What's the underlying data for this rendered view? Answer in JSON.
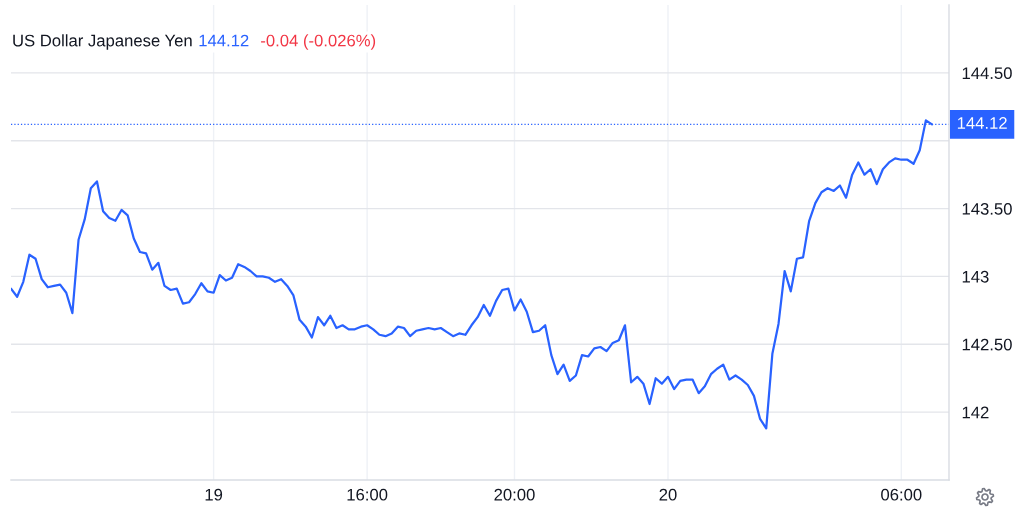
{
  "chart_data": {
    "type": "line",
    "title": "US Dollar Japanese Yen",
    "annotations": [
      "144.12",
      "-0.04 (-0.026%)"
    ],
    "categories": [
      null,
      null,
      null,
      null,
      null,
      null,
      null,
      null,
      null,
      null,
      null,
      null,
      null,
      null,
      null,
      null,
      null,
      null,
      null,
      null,
      null,
      null,
      null,
      null,
      null,
      null,
      null,
      null,
      null,
      null,
      null,
      null,
      null,
      "19",
      null,
      null,
      null,
      null,
      null,
      null,
      null,
      null,
      null,
      null,
      null,
      null,
      null,
      null,
      null,
      null,
      null,
      null,
      null,
      null,
      null,
      null,
      null,
      null,
      "16:00",
      null,
      null,
      null,
      null,
      null,
      null,
      null,
      null,
      null,
      null,
      null,
      null,
      null,
      null,
      null,
      null,
      null,
      null,
      null,
      null,
      null,
      null,
      null,
      "20:00",
      null,
      null,
      null,
      null,
      null,
      null,
      null,
      null,
      null,
      null,
      null,
      null,
      null,
      null,
      null,
      null,
      null,
      null,
      null,
      null,
      null,
      null,
      null,
      null,
      "20",
      null,
      null,
      null,
      null,
      null,
      null,
      null,
      null,
      null,
      null,
      null,
      null,
      null,
      null,
      null,
      null,
      null,
      null,
      null,
      null,
      null,
      null,
      null,
      null,
      null,
      null,
      null,
      null,
      null,
      null,
      null,
      null,
      null,
      null,
      null,
      null,
      null,
      "06:00",
      null,
      null,
      null,
      null,
      null
    ],
    "series": [
      {
        "color": "#2962ff",
        "values": [
          142.91,
          142.85,
          142.96,
          143.16,
          143.13,
          142.98,
          142.92,
          142.93,
          142.94,
          142.88,
          142.73,
          143.27,
          143.42,
          143.65,
          143.7,
          143.48,
          143.43,
          143.41,
          143.49,
          143.45,
          143.28,
          143.18,
          143.17,
          143.05,
          143.1,
          142.93,
          142.9,
          142.91,
          142.8,
          142.81,
          142.87,
          142.95,
          142.89,
          142.88,
          143.01,
          142.97,
          142.99,
          143.09,
          143.07,
          143.04,
          143.0,
          143.0,
          142.99,
          142.96,
          142.98,
          142.93,
          142.86,
          142.68,
          142.63,
          142.55,
          142.7,
          142.64,
          142.71,
          142.62,
          142.64,
          142.61,
          142.61,
          142.63,
          142.64,
          142.61,
          142.57,
          142.56,
          142.58,
          142.63,
          142.62,
          142.56,
          142.6,
          142.61,
          142.62,
          142.61,
          142.62,
          142.59,
          142.56,
          142.58,
          142.57,
          142.64,
          142.7,
          142.79,
          142.71,
          142.82,
          142.9,
          142.91,
          142.75,
          142.83,
          142.74,
          142.59,
          142.6,
          142.64,
          142.42,
          142.28,
          142.35,
          142.23,
          142.27,
          142.42,
          142.41,
          142.47,
          142.48,
          142.45,
          142.51,
          142.53,
          142.64,
          142.22,
          142.26,
          142.21,
          142.06,
          142.25,
          142.21,
          142.26,
          142.17,
          142.23,
          142.24,
          142.24,
          142.14,
          142.19,
          142.28,
          142.32,
          142.35,
          142.24,
          142.27,
          142.24,
          142.2,
          142.12,
          141.95,
          141.88,
          142.43,
          142.65,
          143.04,
          142.89,
          143.13,
          143.14,
          143.41,
          143.54,
          143.62,
          143.65,
          143.63,
          143.67,
          143.58,
          143.75,
          143.84,
          143.75,
          143.79,
          143.68,
          143.79,
          143.84,
          143.87,
          143.86,
          143.86,
          143.83,
          143.93,
          144.15,
          144.12
        ]
      }
    ],
    "ylim": [
      141.5,
      145.0
    ],
    "yticks": [
      142,
      {
        "value": 142.5,
        "label": "142.50"
      },
      143,
      {
        "value": 143.5,
        "label": "143.50"
      },
      {
        "value": 144,
        "label": null
      },
      {
        "value": 144.5,
        "label": "144.50"
      }
    ],
    "ref_lines": [
      {
        "axis": "y",
        "value": 144.12,
        "label": "144.12",
        "color": "#2962ff",
        "line_style": "dotted"
      }
    ],
    "grid": true
  }
}
